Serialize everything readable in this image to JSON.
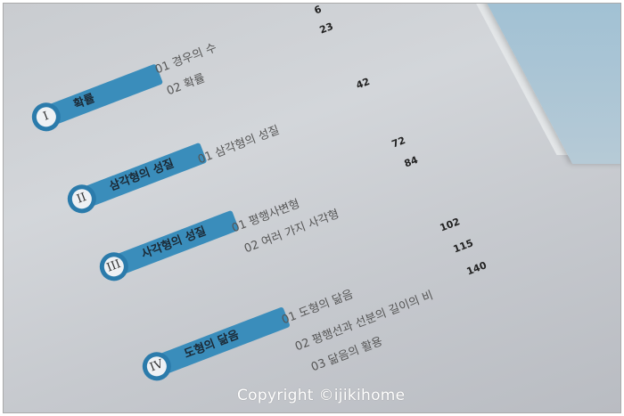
{
  "chapters": [
    {
      "numeral": "I",
      "title": "확률",
      "items": [
        "01 경우의 수",
        "02 확률"
      ]
    },
    {
      "numeral": "II",
      "title": "삼각형의 성질",
      "items": [
        "01 삼각형의 성질"
      ]
    },
    {
      "numeral": "III",
      "title": "사각형의 성질",
      "items": [
        "01 평행사변형",
        "02 여러 가지 사각형"
      ]
    },
    {
      "numeral": "IV",
      "title": "도형의 닮음",
      "items": [
        "01 도형의 닮음",
        "02 평행선과 선분의 길이의 비",
        "03 닮음의 활용"
      ]
    }
  ],
  "page_numbers": [
    "6",
    "23",
    "42",
    "72",
    "84",
    "102",
    "115",
    "140"
  ],
  "watermark": "Copyright ©ijikihome",
  "colors": {
    "accent": "#3a8dbb",
    "circle_border": "#2b7bab"
  }
}
